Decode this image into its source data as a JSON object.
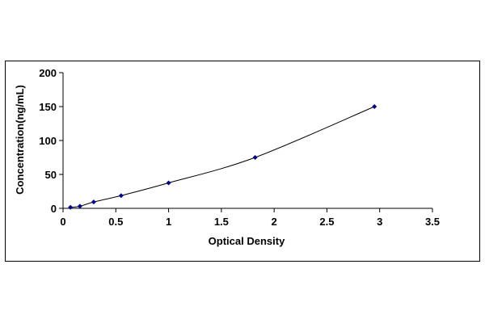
{
  "chart_data": {
    "type": "scatter",
    "title": "",
    "xlabel": "Optical Density",
    "ylabel": "Concentration(ng/mL)",
    "xlim": [
      0,
      3.5
    ],
    "ylim": [
      0,
      200
    ],
    "x_ticks": [
      "0",
      "0.5",
      "1",
      "1.5",
      "2",
      "2.5",
      "3",
      "3.5"
    ],
    "y_ticks": [
      "0",
      "50",
      "100",
      "150",
      "200"
    ],
    "grid": false,
    "legend": "none",
    "series": [
      {
        "marker": "diamond",
        "line": "smooth",
        "color": "#00008b",
        "line_color": "#000000",
        "points": [
          {
            "x": 0.07,
            "y": 1.56
          },
          {
            "x": 0.16,
            "y": 3.13
          },
          {
            "x": 0.29,
            "y": 9.38
          },
          {
            "x": 0.55,
            "y": 18.75
          },
          {
            "x": 1.0,
            "y": 37.5
          },
          {
            "x": 1.82,
            "y": 75
          },
          {
            "x": 2.95,
            "y": 150
          }
        ]
      }
    ]
  }
}
